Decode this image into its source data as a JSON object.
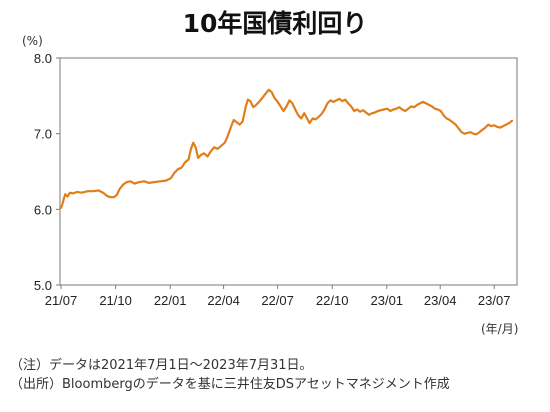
{
  "title": "10年国債利回り",
  "unit_label": "(%)",
  "x_unit_label": "(年/月)",
  "notes": {
    "note": "（注）データは2021年7月1日～2023年7月31日。",
    "source": "（出所）Bloombergのデータを基に三井住友DSアセットマネジメント作成"
  },
  "line_color": "#E07E1B",
  "chart_data": {
    "type": "line",
    "title": "10年国債利回り",
    "xlabel": "(年/月)",
    "ylabel": "(%)",
    "ylim": [
      5.0,
      8.0
    ],
    "yticks": [
      "5.0",
      "6.0",
      "7.0",
      "8.0"
    ],
    "xticks": [
      "21/07",
      "21/10",
      "22/01",
      "22/04",
      "22/07",
      "22/10",
      "23/01",
      "23/04",
      "23/07"
    ],
    "xlim": [
      "2021-07-01",
      "2023-07-31"
    ],
    "grid": false,
    "series": [
      {
        "points": [
          [
            "2021-07-01",
            6.02
          ],
          [
            "2021-07-03",
            6.06
          ],
          [
            "2021-07-05",
            6.12
          ],
          [
            "2021-07-08",
            6.2
          ],
          [
            "2021-07-12",
            6.17
          ],
          [
            "2021-07-16",
            6.22
          ],
          [
            "2021-07-22",
            6.21
          ],
          [
            "2021-07-28",
            6.23
          ],
          [
            "2021-08-05",
            6.22
          ],
          [
            "2021-08-15",
            6.24
          ],
          [
            "2021-08-25",
            6.24
          ],
          [
            "2021-09-02",
            6.25
          ],
          [
            "2021-09-10",
            6.22
          ],
          [
            "2021-09-16",
            6.18
          ],
          [
            "2021-09-22",
            6.16
          ],
          [
            "2021-09-28",
            6.16
          ],
          [
            "2021-10-03",
            6.19
          ],
          [
            "2021-10-08",
            6.27
          ],
          [
            "2021-10-14",
            6.33
          ],
          [
            "2021-10-20",
            6.36
          ],
          [
            "2021-10-26",
            6.37
          ],
          [
            "2021-11-02",
            6.34
          ],
          [
            "2021-11-10",
            6.36
          ],
          [
            "2021-11-18",
            6.37
          ],
          [
            "2021-11-26",
            6.35
          ],
          [
            "2021-12-05",
            6.36
          ],
          [
            "2021-12-15",
            6.37
          ],
          [
            "2021-12-25",
            6.38
          ],
          [
            "2022-01-02",
            6.41
          ],
          [
            "2022-01-08",
            6.48
          ],
          [
            "2022-01-14",
            6.53
          ],
          [
            "2022-01-20",
            6.55
          ],
          [
            "2022-01-26",
            6.62
          ],
          [
            "2022-02-01",
            6.66
          ],
          [
            "2022-02-05",
            6.8
          ],
          [
            "2022-02-09",
            6.88
          ],
          [
            "2022-02-13",
            6.82
          ],
          [
            "2022-02-17",
            6.68
          ],
          [
            "2022-02-22",
            6.72
          ],
          [
            "2022-02-27",
            6.74
          ],
          [
            "2022-03-05",
            6.7
          ],
          [
            "2022-03-10",
            6.76
          ],
          [
            "2022-03-16",
            6.82
          ],
          [
            "2022-03-22",
            6.8
          ],
          [
            "2022-03-28",
            6.84
          ],
          [
            "2022-04-03",
            6.88
          ],
          [
            "2022-04-08",
            6.97
          ],
          [
            "2022-04-13",
            7.08
          ],
          [
            "2022-04-18",
            7.18
          ],
          [
            "2022-04-23",
            7.15
          ],
          [
            "2022-04-28",
            7.12
          ],
          [
            "2022-05-03",
            7.16
          ],
          [
            "2022-05-08",
            7.35
          ],
          [
            "2022-05-12",
            7.45
          ],
          [
            "2022-05-16",
            7.43
          ],
          [
            "2022-05-21",
            7.35
          ],
          [
            "2022-05-26",
            7.38
          ],
          [
            "2022-06-01",
            7.43
          ],
          [
            "2022-06-06",
            7.48
          ],
          [
            "2022-06-11",
            7.53
          ],
          [
            "2022-06-16",
            7.58
          ],
          [
            "2022-06-21",
            7.55
          ],
          [
            "2022-06-26",
            7.47
          ],
          [
            "2022-07-01",
            7.42
          ],
          [
            "2022-07-06",
            7.36
          ],
          [
            "2022-07-11",
            7.3
          ],
          [
            "2022-07-16",
            7.36
          ],
          [
            "2022-07-21",
            7.44
          ],
          [
            "2022-07-26",
            7.4
          ],
          [
            "2022-08-01",
            7.3
          ],
          [
            "2022-08-05",
            7.24
          ],
          [
            "2022-08-10",
            7.2
          ],
          [
            "2022-08-15",
            7.27
          ],
          [
            "2022-08-19",
            7.21
          ],
          [
            "2022-08-24",
            7.14
          ],
          [
            "2022-08-29",
            7.2
          ],
          [
            "2022-09-03",
            7.19
          ],
          [
            "2022-09-08",
            7.22
          ],
          [
            "2022-09-13",
            7.26
          ],
          [
            "2022-09-18",
            7.32
          ],
          [
            "2022-09-23",
            7.4
          ],
          [
            "2022-09-28",
            7.44
          ],
          [
            "2022-10-03",
            7.42
          ],
          [
            "2022-10-08",
            7.44
          ],
          [
            "2022-10-13",
            7.46
          ],
          [
            "2022-10-18",
            7.43
          ],
          [
            "2022-10-23",
            7.45
          ],
          [
            "2022-10-28",
            7.4
          ],
          [
            "2022-11-02",
            7.36
          ],
          [
            "2022-11-07",
            7.3
          ],
          [
            "2022-11-12",
            7.32
          ],
          [
            "2022-11-17",
            7.29
          ],
          [
            "2022-11-22",
            7.31
          ],
          [
            "2022-11-27",
            7.28
          ],
          [
            "2022-12-02",
            7.25
          ],
          [
            "2022-12-07",
            7.27
          ],
          [
            "2022-12-12",
            7.28
          ],
          [
            "2022-12-17",
            7.3
          ],
          [
            "2022-12-22",
            7.31
          ],
          [
            "2022-12-27",
            7.32
          ],
          [
            "2023-01-02",
            7.33
          ],
          [
            "2023-01-07",
            7.3
          ],
          [
            "2023-01-12",
            7.32
          ],
          [
            "2023-01-17",
            7.33
          ],
          [
            "2023-01-22",
            7.35
          ],
          [
            "2023-01-27",
            7.32
          ],
          [
            "2023-02-01",
            7.3
          ],
          [
            "2023-02-06",
            7.33
          ],
          [
            "2023-02-11",
            7.36
          ],
          [
            "2023-02-16",
            7.35
          ],
          [
            "2023-02-21",
            7.38
          ],
          [
            "2023-02-26",
            7.4
          ],
          [
            "2023-03-03",
            7.42
          ],
          [
            "2023-03-08",
            7.4
          ],
          [
            "2023-03-13",
            7.38
          ],
          [
            "2023-03-18",
            7.36
          ],
          [
            "2023-03-23",
            7.33
          ],
          [
            "2023-03-28",
            7.32
          ],
          [
            "2023-04-02",
            7.3
          ],
          [
            "2023-04-07",
            7.24
          ],
          [
            "2023-04-12",
            7.2
          ],
          [
            "2023-04-17",
            7.18
          ],
          [
            "2023-04-22",
            7.15
          ],
          [
            "2023-04-27",
            7.12
          ],
          [
            "2023-05-02",
            7.07
          ],
          [
            "2023-05-07",
            7.02
          ],
          [
            "2023-05-12",
            7.0
          ],
          [
            "2023-05-17",
            7.01
          ],
          [
            "2023-05-22",
            7.02
          ],
          [
            "2023-05-27",
            7.0
          ],
          [
            "2023-06-01",
            6.99
          ],
          [
            "2023-06-06",
            7.02
          ],
          [
            "2023-06-11",
            7.05
          ],
          [
            "2023-06-16",
            7.08
          ],
          [
            "2023-06-21",
            7.12
          ],
          [
            "2023-06-26",
            7.1
          ],
          [
            "2023-07-01",
            7.11
          ],
          [
            "2023-07-06",
            7.09
          ],
          [
            "2023-07-11",
            7.08
          ],
          [
            "2023-07-16",
            7.1
          ],
          [
            "2023-07-21",
            7.12
          ],
          [
            "2023-07-26",
            7.14
          ],
          [
            "2023-07-31",
            7.17
          ]
        ]
      }
    ]
  }
}
